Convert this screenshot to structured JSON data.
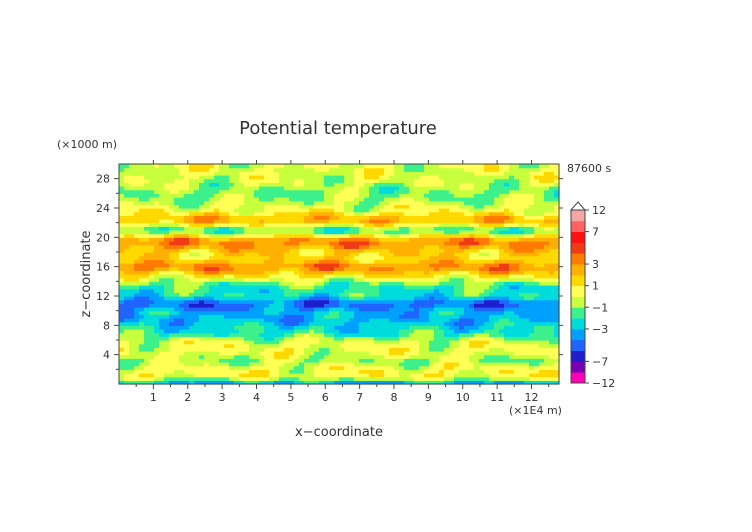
{
  "chart_data": {
    "type": "heatmap",
    "title": "Potential temperature",
    "xlabel": "x−coordinate",
    "ylabel": "z−coordinate",
    "x_unit": "(×1E4 m)",
    "y_unit": "(×1000 m)",
    "time_label": "87600 s",
    "xlim": [
      0,
      12.8
    ],
    "ylim": [
      0,
      30
    ],
    "x_ticks": [
      1,
      2,
      3,
      4,
      5,
      6,
      7,
      8,
      9,
      10,
      11,
      12
    ],
    "y_ticks": [
      4,
      8,
      12,
      16,
      20,
      24,
      28
    ],
    "colorbar": {
      "tick_labels": [
        "12",
        "7",
        "3",
        "1",
        "−1",
        "−3",
        "−7",
        "−12"
      ],
      "tick_values": [
        12,
        7,
        3,
        1,
        -1,
        -3,
        -7,
        -12
      ],
      "levels": [
        {
          "min": 12,
          "color": "#ffffff"
        },
        {
          "min": 9,
          "color": "#f6a5a5"
        },
        {
          "min": 7,
          "color": "#ff6060"
        },
        {
          "min": 5,
          "color": "#ff1010"
        },
        {
          "min": 4,
          "color": "#f03c14"
        },
        {
          "min": 3,
          "color": "#ff7a00"
        },
        {
          "min": 2,
          "color": "#ffb000"
        },
        {
          "min": 1,
          "color": "#ffd800"
        },
        {
          "min": 0,
          "color": "#ffff55"
        },
        {
          "min": -1,
          "color": "#c8ff3c"
        },
        {
          "min": -2,
          "color": "#3cf08c"
        },
        {
          "min": -3,
          "color": "#00dcdc"
        },
        {
          "min": -4,
          "color": "#00a0ff"
        },
        {
          "min": -5,
          "color": "#1f64ff"
        },
        {
          "min": -7,
          "color": "#1e1ecc"
        },
        {
          "min": -9,
          "color": "#7a00b4"
        },
        {
          "min": -12,
          "color": "#ff00b4"
        }
      ]
    },
    "bands": [
      {
        "z": 0.3,
        "value": -3.0,
        "width": 0.4
      },
      {
        "z": 2.0,
        "value": 0.5,
        "width": 1.8
      },
      {
        "z": 3.2,
        "value": -1.0,
        "width": 0.8
      },
      {
        "z": 5.5,
        "value": 0.3,
        "width": 1.5
      },
      {
        "z": 7.0,
        "value": -1.5,
        "width": 1.0
      },
      {
        "z": 9.0,
        "value": -3.2,
        "width": 1.5
      },
      {
        "z": 11.0,
        "value": -3.6,
        "width": 1.0
      },
      {
        "z": 13.0,
        "value": -2.0,
        "width": 1.2
      },
      {
        "z": 14.5,
        "value": 0.5,
        "width": 1.0
      },
      {
        "z": 16.0,
        "value": 3.0,
        "width": 1.0
      },
      {
        "z": 17.8,
        "value": 1.0,
        "width": 1.0
      },
      {
        "z": 19.5,
        "value": 3.3,
        "width": 1.2
      },
      {
        "z": 21.0,
        "value": -2.5,
        "width": 1.0
      },
      {
        "z": 22.3,
        "value": 2.5,
        "width": 1.0
      },
      {
        "z": 24.0,
        "value": 0.2,
        "width": 1.2
      },
      {
        "z": 26.0,
        "value": -1.0,
        "width": 1.5
      },
      {
        "z": 28.5,
        "value": 0.0,
        "width": 1.5
      }
    ]
  }
}
